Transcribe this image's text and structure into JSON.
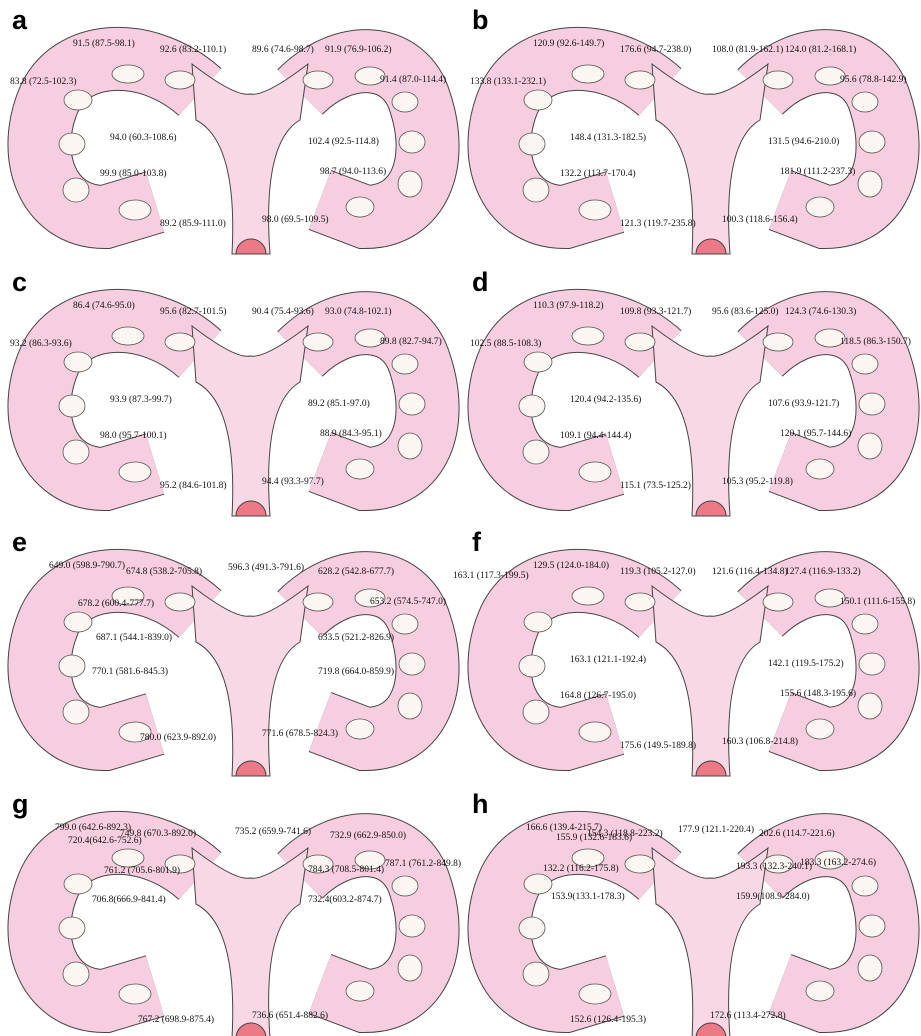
{
  "panels": [
    {
      "letter": "a",
      "labels": [
        "91.5 (87.5-98.1)",
        "92.6 (83.2-110.1)",
        "89.6 (74.6-98.7)",
        "91.9 (76.9-106.2)",
        "83.8 (72.5-102.3)",
        "91.4 (87.0-114.4)",
        "94.0 (60.3-108.6)",
        "102.4 (92.5-114.8)",
        "99.9 (85.0-103.8)",
        "98.7 (94.0-113.6)",
        "89.2 (85.9-111.0)",
        "98.0 (69.5-109.5)"
      ]
    },
    {
      "letter": "b",
      "labels": [
        "120.9 (92.6-149.7)",
        "176.6 (94.7-238.0)",
        "108.0 (81.9-162.1)",
        "124.0 (81.2-168.1)",
        "133.8 (133.1-232.1)",
        "95.6 (78.8-142.9)",
        "148.4 (131.3-182.5)",
        "131.5 (94.6-210.0)",
        "132.2 (113.7-170.4)",
        "181.9 (111.2-237.3)",
        "121.3 (119.7-235.8)",
        "100.3 (118.6-156.4)"
      ]
    },
    {
      "letter": "c",
      "labels": [
        "86.4 (74.6-95.0)",
        "95.6 (82.7-101.5)",
        "90.4 (75.4-93.6)",
        "93.0 (74.8-102.1)",
        "93.2 (86.3-93.6)",
        "89.8 (82.7-94.7)",
        "93.9 (87.3-99.7)",
        "89.2 (85.1-97.0)",
        "98.0 (95.7-100.1)",
        "88.9 (84.3-95.1)",
        "95.2 (84.6-101.8)",
        "94.4 (93.3-97.7)"
      ]
    },
    {
      "letter": "d",
      "labels": [
        "110.3 (97.9-118.2)",
        "109.8 (93.3-121.7)",
        "95.6 (83.6-125.0)",
        "124.3 (74.6-130.3)",
        "102.5 (88.5-108.3)",
        "118.5 (86.3-150.7)",
        "120.4 (94.2-135.6)",
        "107.6 (93.9-121.7)",
        "109.1 (94.4-144.4)",
        "120.1 (95.7-144.6)",
        "115.1 (73.5-125.2)",
        "105.3 (95.2-119.8)"
      ]
    },
    {
      "letter": "e",
      "labels": [
        "649.0 (598.9-790.7)",
        "674.8 (538.2-705.8)",
        "596.3 (491.3-791.6)",
        "628.2 (542.8-677.7)",
        "653.2 (574.5-747.0)",
        "678.2 (600.4-777.7)",
        "687.1 (544.1-839.0)",
        "633.5 (521.2-826.9)",
        "770.1 (581.6-845.3)",
        "719.8 (664.0-859.9)",
        "780.0 (623.9-892.0)",
        "771.6 (678.5-824.3)"
      ]
    },
    {
      "letter": "f",
      "labels": [
        "129.5 (124.0-184.0)",
        "119.3 (105.2-127.0)",
        "121.6 (116.4-134.8)",
        "127.4 (116.9-133.2)",
        "163.1 (117.3-199.5)",
        "150.1 (111.6-155.8)",
        "163.1 (121.1-192.4)",
        "142.1 (119.5-175.2)",
        "164.8 (126.7-195.0)",
        "155.6 (148.3-195.6)",
        "175.6 (149.5-189.8)",
        "160.3 (106.8-214.8)"
      ]
    },
    {
      "letter": "g",
      "labels": [
        "799.0 (642.6-892.3)",
        "749.8 (670.3-892.0)",
        "735.2 (659.9-741.6)",
        "732.9 (662.9-850.0)",
        "787.1 (761.2-849.8)",
        "720.4(642.6-752.6)",
        "761.2 (705.6-801.9)",
        "784.3 (708.5-801.4)",
        "706.8(666.9-841.4)",
        "732.4(603.2-874.7)",
        "767.2 (698.9-875.4)",
        "736.6 (651.4-882.6)"
      ]
    },
    {
      "letter": "h",
      "labels": [
        "166.6 (139.4-215.7)",
        "154.3 (118.8-223.2)",
        "177.9 (121.1-220.4)",
        "202.6 (114.7-221.6)",
        "183.3 (163.2-274.6)",
        "155.9 (132.6-183.6)",
        "132.2 (116.2-175.8)",
        "193.3 (132.3-240.1)",
        "153.9(133.1-178.3)",
        "159.9(108.9-284.0)",
        "152.6 (126.4-195.3)",
        "172.6 (113.4-272.8)"
      ]
    }
  ]
}
